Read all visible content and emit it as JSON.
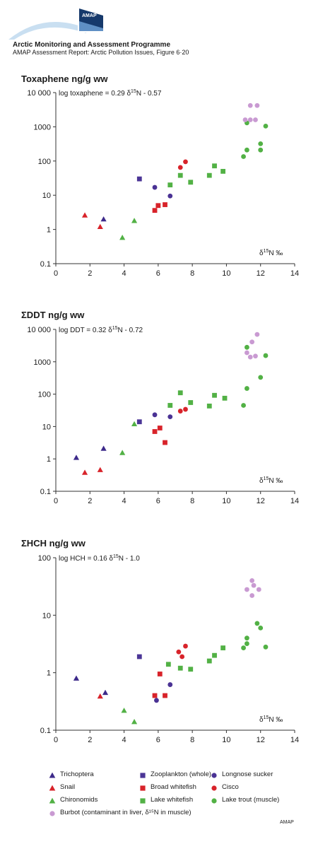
{
  "header": {
    "logo_text": "AMAP",
    "title": "Arctic Monitoring and Assessment Programme",
    "subtitle": "AMAP Assessment Report: Arctic Pollution Issues, Figure 6·20"
  },
  "colors": {
    "trichoptera": "#3d2a8a",
    "zooplankton": "#4b3596",
    "longnose_sucker": "#4a3294",
    "snail": "#d8232a",
    "broad_whitefish": "#d8232a",
    "cisco": "#d8232a",
    "chironomids": "#52b145",
    "lake_whitefish": "#52b145",
    "lake_trout": "#52b145",
    "burbot": "#c99ad2",
    "arc": "#c9dff1"
  },
  "legend": [
    {
      "key": "trichoptera",
      "label": "Trichoptera",
      "marker": "triangle"
    },
    {
      "key": "zooplankton",
      "label": "Zooplankton (whole)",
      "marker": "square"
    },
    {
      "key": "longnose_sucker",
      "label": "Longnose sucker",
      "marker": "circle"
    },
    {
      "key": "snail",
      "label": "Snail",
      "marker": "triangle"
    },
    {
      "key": "broad_whitefish",
      "label": "Broad whitefish",
      "marker": "square"
    },
    {
      "key": "cisco",
      "label": "Cisco",
      "marker": "circle"
    },
    {
      "key": "chironomids",
      "label": "Chironomids",
      "marker": "triangle"
    },
    {
      "key": "lake_whitefish",
      "label": "Lake whitefish",
      "marker": "square"
    },
    {
      "key": "lake_trout",
      "label": "Lake trout (muscle)",
      "marker": "circle"
    },
    {
      "key": "burbot",
      "label": "Burbot (contaminant in liver, δ¹⁵N in muscle)",
      "marker": "circle"
    }
  ],
  "credit": "AMAP",
  "chart_data": [
    {
      "type": "scatter",
      "title": "Toxaphene ng/g ww",
      "equation": "log toxaphene = 0.29 δ¹⁵N - 0.57",
      "xlabel": "δ¹⁵N ‰",
      "x_scale": "linear",
      "y_scale": "log",
      "xlim": [
        0,
        14
      ],
      "ylim": [
        0.1,
        10000
      ],
      "x_ticks": [
        0,
        2,
        4,
        6,
        8,
        10,
        12,
        14
      ],
      "y_ticks": [
        0.1,
        1,
        10,
        100,
        1000,
        10000
      ],
      "y_tick_labels": [
        "0.1",
        "1",
        "10",
        "100",
        "1000",
        "10 000"
      ],
      "grid": false,
      "series": [
        {
          "key": "trichoptera",
          "points": [
            [
              2.8,
              2
            ]
          ]
        },
        {
          "key": "snail",
          "points": [
            [
              1.7,
              2.6
            ],
            [
              2.6,
              1.2
            ]
          ]
        },
        {
          "key": "chironomids",
          "points": [
            [
              3.9,
              0.58
            ],
            [
              4.6,
              1.8
            ]
          ]
        },
        {
          "key": "zooplankton",
          "points": [
            [
              4.9,
              30
            ]
          ]
        },
        {
          "key": "broad_whitefish",
          "points": [
            [
              5.8,
              3.6
            ],
            [
              6.0,
              5
            ],
            [
              6.4,
              5.3
            ]
          ]
        },
        {
          "key": "longnose_sucker",
          "points": [
            [
              5.8,
              17
            ],
            [
              6.7,
              9.5
            ]
          ]
        },
        {
          "key": "cisco",
          "points": [
            [
              7.3,
              65
            ],
            [
              7.6,
              95
            ]
          ]
        },
        {
          "key": "lake_whitefish",
          "points": [
            [
              6.7,
              20
            ],
            [
              7.3,
              38
            ],
            [
              7.9,
              24
            ],
            [
              9.0,
              38
            ],
            [
              9.3,
              72
            ],
            [
              9.8,
              50
            ]
          ]
        },
        {
          "key": "lake_trout",
          "points": [
            [
              11.0,
              135
            ],
            [
              11.2,
              210
            ],
            [
              11.2,
              1300
            ],
            [
              12.0,
              210
            ],
            [
              12.0,
              320
            ],
            [
              12.3,
              1050
            ]
          ]
        },
        {
          "key": "burbot",
          "points": [
            [
              11.1,
              1600
            ],
            [
              11.4,
              1600
            ],
            [
              11.7,
              1600
            ],
            [
              11.4,
              4200
            ],
            [
              11.8,
              4200
            ]
          ]
        }
      ]
    },
    {
      "type": "scatter",
      "title": "ΣDDT ng/g ww",
      "equation": "log DDT = 0.32 δ¹⁵N - 0.72",
      "xlabel": "δ¹⁵N ‰",
      "x_scale": "linear",
      "y_scale": "log",
      "xlim": [
        0,
        14
      ],
      "ylim": [
        0.1,
        10000
      ],
      "x_ticks": [
        0,
        2,
        4,
        6,
        8,
        10,
        12,
        14
      ],
      "y_ticks": [
        0.1,
        1,
        10,
        100,
        1000,
        10000
      ],
      "y_tick_labels": [
        "0.1",
        "1",
        "10",
        "100",
        "1000",
        "10 000"
      ],
      "grid": false,
      "series": [
        {
          "key": "trichoptera",
          "points": [
            [
              1.2,
              1.1
            ],
            [
              2.8,
              2.1
            ]
          ]
        },
        {
          "key": "snail",
          "points": [
            [
              1.7,
              0.38
            ],
            [
              2.6,
              0.46
            ]
          ]
        },
        {
          "key": "chironomids",
          "points": [
            [
              3.9,
              1.55
            ],
            [
              4.6,
              12
            ]
          ]
        },
        {
          "key": "zooplankton",
          "points": [
            [
              4.9,
              14
            ]
          ]
        },
        {
          "key": "broad_whitefish",
          "points": [
            [
              5.8,
              7
            ],
            [
              6.1,
              9
            ],
            [
              6.4,
              3.2
            ]
          ]
        },
        {
          "key": "longnose_sucker",
          "points": [
            [
              5.8,
              23
            ],
            [
              6.7,
              20
            ]
          ]
        },
        {
          "key": "cisco",
          "points": [
            [
              7.3,
              30
            ],
            [
              7.6,
              34
            ]
          ]
        },
        {
          "key": "lake_whitefish",
          "points": [
            [
              6.7,
              45
            ],
            [
              7.3,
              110
            ],
            [
              7.9,
              55
            ],
            [
              9.0,
              43
            ],
            [
              9.3,
              92
            ],
            [
              9.9,
              75
            ]
          ]
        },
        {
          "key": "lake_trout",
          "points": [
            [
              11.0,
              45
            ],
            [
              11.2,
              150
            ],
            [
              11.2,
              2800
            ],
            [
              12.0,
              330
            ],
            [
              12.3,
              1550
            ]
          ]
        },
        {
          "key": "burbot",
          "points": [
            [
              11.2,
              1900
            ],
            [
              11.4,
              1400
            ],
            [
              11.7,
              1500
            ],
            [
              11.5,
              4100
            ],
            [
              11.8,
              7000
            ]
          ]
        }
      ]
    },
    {
      "type": "scatter",
      "title": "ΣHCH ng/g ww",
      "equation": "log HCH = 0.16 δ¹⁵N - 1.0",
      "xlabel": "δ¹⁵N ‰",
      "x_scale": "linear",
      "y_scale": "log",
      "xlim": [
        0,
        14
      ],
      "ylim": [
        0.1,
        100
      ],
      "x_ticks": [
        0,
        2,
        4,
        6,
        8,
        10,
        12,
        14
      ],
      "y_ticks": [
        0.1,
        1,
        10,
        100
      ],
      "y_tick_labels": [
        "0.1",
        "1",
        "10",
        "100"
      ],
      "grid": false,
      "series": [
        {
          "key": "trichoptera",
          "points": [
            [
              1.2,
              0.8
            ],
            [
              2.9,
              0.45
            ]
          ]
        },
        {
          "key": "snail",
          "points": [
            [
              2.6,
              0.39
            ]
          ]
        },
        {
          "key": "chironomids",
          "points": [
            [
              4.0,
              0.22
            ],
            [
              4.6,
              0.14
            ]
          ]
        },
        {
          "key": "zooplankton",
          "points": [
            [
              4.9,
              1.9
            ]
          ]
        },
        {
          "key": "broad_whitefish",
          "points": [
            [
              5.8,
              0.4
            ],
            [
              6.1,
              0.95
            ],
            [
              6.4,
              0.4
            ]
          ]
        },
        {
          "key": "longnose_sucker",
          "points": [
            [
              5.9,
              0.33
            ],
            [
              6.7,
              0.62
            ]
          ]
        },
        {
          "key": "cisco",
          "points": [
            [
              7.2,
              2.3
            ],
            [
              7.4,
              1.9
            ],
            [
              7.6,
              2.9
            ]
          ]
        },
        {
          "key": "lake_whitefish",
          "points": [
            [
              6.6,
              1.4
            ],
            [
              7.3,
              1.2
            ],
            [
              7.9,
              1.15
            ],
            [
              9.0,
              1.6
            ],
            [
              9.3,
              2.0
            ],
            [
              9.8,
              2.7
            ]
          ]
        },
        {
          "key": "lake_trout",
          "points": [
            [
              11.0,
              2.7
            ],
            [
              11.2,
              3.2
            ],
            [
              11.2,
              4.0
            ],
            [
              11.8,
              7.2
            ],
            [
              12.0,
              6.0
            ],
            [
              12.3,
              2.8
            ]
          ]
        },
        {
          "key": "burbot",
          "points": [
            [
              11.2,
              28
            ],
            [
              11.5,
              40
            ],
            [
              11.6,
              33
            ],
            [
              11.5,
              22
            ],
            [
              11.9,
              28
            ]
          ]
        }
      ]
    }
  ]
}
